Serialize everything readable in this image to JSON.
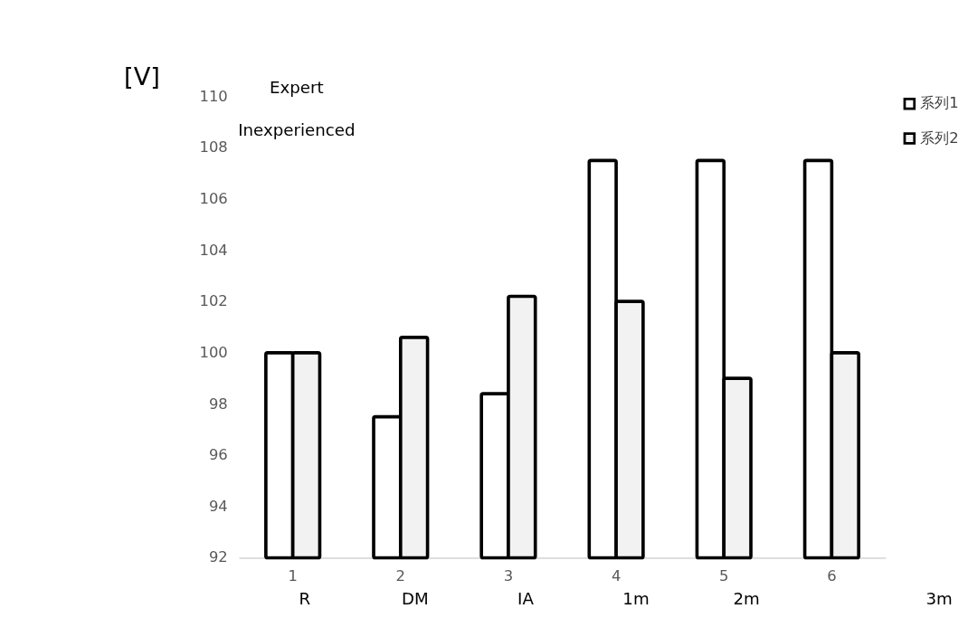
{
  "chart_data": {
    "type": "bar",
    "ylabel": "[V]",
    "categories": [
      "1",
      "2",
      "3",
      "4",
      "5",
      "6"
    ],
    "series": [
      {
        "name": "系列1",
        "color": "#ffffff",
        "values": [
          100,
          97.5,
          98.4,
          107.5,
          107.5,
          107.5
        ]
      },
      {
        "name": "系列2",
        "color": "#f2f2f2",
        "values": [
          100,
          100.6,
          102.2,
          102.0,
          99.0,
          100
        ]
      }
    ],
    "ylim": [
      92,
      110
    ],
    "yticks": [
      92,
      94,
      96,
      98,
      100,
      102,
      104,
      106,
      108,
      110
    ],
    "grid": false,
    "legend": "right",
    "annotations": [
      "Expert",
      "Inexperienced",
      "R",
      "DM",
      "IA",
      "1m",
      "2m",
      "3m"
    ]
  }
}
